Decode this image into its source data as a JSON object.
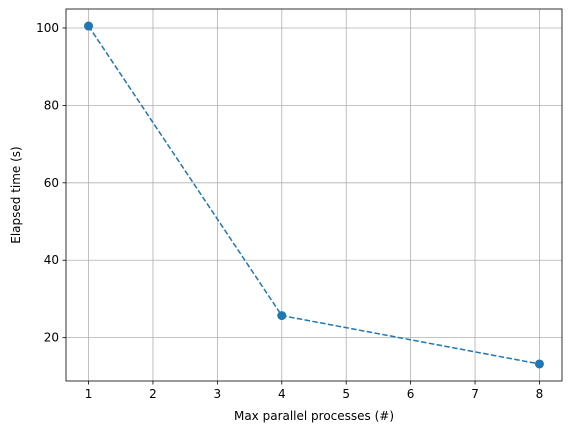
{
  "chart_data": {
    "type": "line",
    "x_label": "Max parallel processes (#)",
    "y_label": "Elapsed time (s)",
    "x": [
      1,
      4,
      8
    ],
    "series": [
      {
        "name": "Elapsed time",
        "color": "#1f77b4",
        "values": [
          100.5,
          25.7,
          13.2
        ]
      }
    ],
    "xlim": [
      0.65,
      8.35
    ],
    "xticks": [
      1,
      2,
      3,
      4,
      5,
      6,
      7,
      8
    ],
    "ylim": [
      8.8,
      104.9
    ],
    "yticks": [
      20,
      40,
      60,
      80,
      100
    ],
    "grid": true,
    "line_style": "dashed",
    "marker": "circle"
  }
}
